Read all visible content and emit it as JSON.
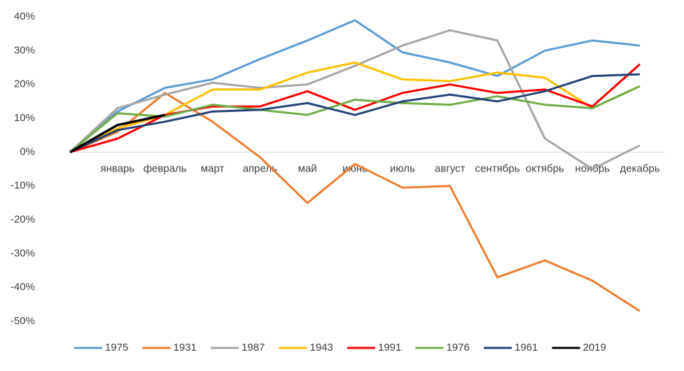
{
  "chart_data": {
    "type": "line",
    "categories": [
      null,
      "январь",
      "февраль",
      "март",
      "апрель",
      "май",
      "июнь",
      "июль",
      "август",
      "сентябрь",
      "октябрь",
      "ноябрь",
      "декабрь"
    ],
    "series": [
      {
        "name": "1975",
        "color": "#5b9bd5",
        "values": [
          0,
          12,
          19,
          21.5,
          27.5,
          33,
          39,
          29.5,
          26.5,
          22.5,
          30,
          33,
          31.5
        ]
      },
      {
        "name": "1931",
        "color": "#ed7d31",
        "values": [
          0,
          6,
          17.5,
          9,
          -1.5,
          -15,
          -3.5,
          -10.5,
          -10,
          -37,
          -32,
          -38,
          -47
        ]
      },
      {
        "name": "1987",
        "color": "#a5a5a5",
        "values": [
          0,
          13,
          17,
          20.5,
          19,
          20,
          25.5,
          31.5,
          36,
          33,
          4,
          -5,
          2
        ]
      },
      {
        "name": "1943",
        "color": "#ffc000",
        "values": [
          0,
          7,
          11,
          18.5,
          18.5,
          23.5,
          26.5,
          21.5,
          21,
          23.5,
          22,
          13,
          19.5
        ]
      },
      {
        "name": "1991",
        "color": "#ff0000",
        "values": [
          0,
          4,
          11,
          13.5,
          13.5,
          18,
          12.5,
          17.5,
          20,
          17.5,
          18.5,
          13.5,
          26
        ]
      },
      {
        "name": "1976",
        "color": "#70ad47",
        "values": [
          0,
          11.5,
          10.5,
          14,
          12.5,
          11,
          15.5,
          14.5,
          14,
          16.5,
          14,
          13,
          19.5
        ]
      },
      {
        "name": "1961",
        "color": "#264478",
        "values": [
          0,
          6.5,
          9,
          12,
          12.5,
          14.5,
          11,
          15,
          17,
          15,
          18,
          22.5,
          23
        ]
      },
      {
        "name": "2019",
        "color": "#000000",
        "values": [
          0,
          8,
          11,
          null,
          null,
          null,
          null,
          null,
          null,
          null,
          null,
          null,
          null
        ]
      }
    ],
    "ylim": [
      -50,
      40
    ],
    "yticks": [
      {
        "value": -50,
        "label": "-50%"
      },
      {
        "value": -40,
        "label": "-40%"
      },
      {
        "value": -30,
        "label": "-30%"
      },
      {
        "value": -20,
        "label": "-20%"
      },
      {
        "value": -10,
        "label": "-10%"
      },
      {
        "value": 0,
        "label": "0%"
      },
      {
        "value": 10,
        "label": "10%"
      },
      {
        "value": 20,
        "label": "20%"
      },
      {
        "value": 30,
        "label": "30%"
      },
      {
        "value": 40,
        "label": "40%"
      }
    ],
    "grid": false,
    "legend": "bottom"
  }
}
